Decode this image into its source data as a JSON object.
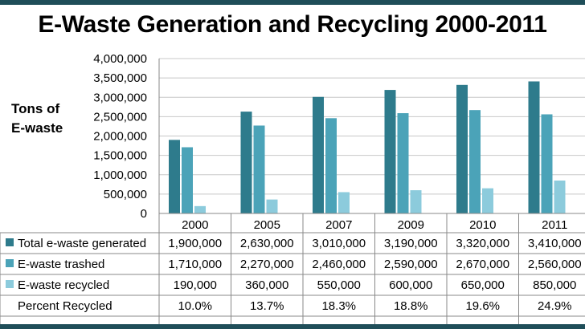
{
  "title": "E-Waste Generation and Recycling 2000-2011",
  "ylabel_lines": [
    "Tons of",
    "E-waste"
  ],
  "chart_data": {
    "type": "bar",
    "title": "E-Waste Generation and Recycling 2000-2011",
    "ylabel": "Tons of E-waste",
    "xlabel": "",
    "categories": [
      "2000",
      "2005",
      "2007",
      "2009",
      "2010",
      "2011"
    ],
    "ylim": [
      0,
      4000000
    ],
    "yticks": [
      "4,000,000",
      "3,500,000",
      "3,000,000",
      "2,500,000",
      "2,000,000",
      "1,500,000",
      "1,000,000",
      "500,000",
      "0"
    ],
    "grid": true,
    "legend": "data table",
    "series": [
      {
        "name": "Total e-waste generated",
        "color": "#2e7b8c",
        "values": [
          1900000,
          2630000,
          3010000,
          3190000,
          3320000,
          3410000
        ],
        "labels": [
          "1,900,000",
          "2,630,000",
          "3,010,000",
          "3,190,000",
          "3,320,000",
          "3,410,000"
        ]
      },
      {
        "name": "E-waste trashed",
        "color": "#4ba3b8",
        "values": [
          1710000,
          2270000,
          2460000,
          2590000,
          2670000,
          2560000
        ],
        "labels": [
          "1,710,000",
          "2,270,000",
          "2,460,000",
          "2,590,000",
          "2,670,000",
          "2,560,000"
        ]
      },
      {
        "name": "E-waste recycled",
        "color": "#8ccbdc",
        "values": [
          190000,
          360000,
          550000,
          600000,
          650000,
          850000
        ],
        "labels": [
          "190,000",
          "360,000",
          "550,000",
          "600,000",
          "650,000",
          "850,000"
        ]
      }
    ],
    "percent_row": {
      "name": "Percent Recycled",
      "values": [
        10.0,
        13.7,
        18.3,
        18.8,
        19.6,
        24.9
      ],
      "labels": [
        "10.0%",
        "13.7%",
        "18.3%",
        "18.8%",
        "19.6%",
        "24.9%"
      ]
    }
  }
}
